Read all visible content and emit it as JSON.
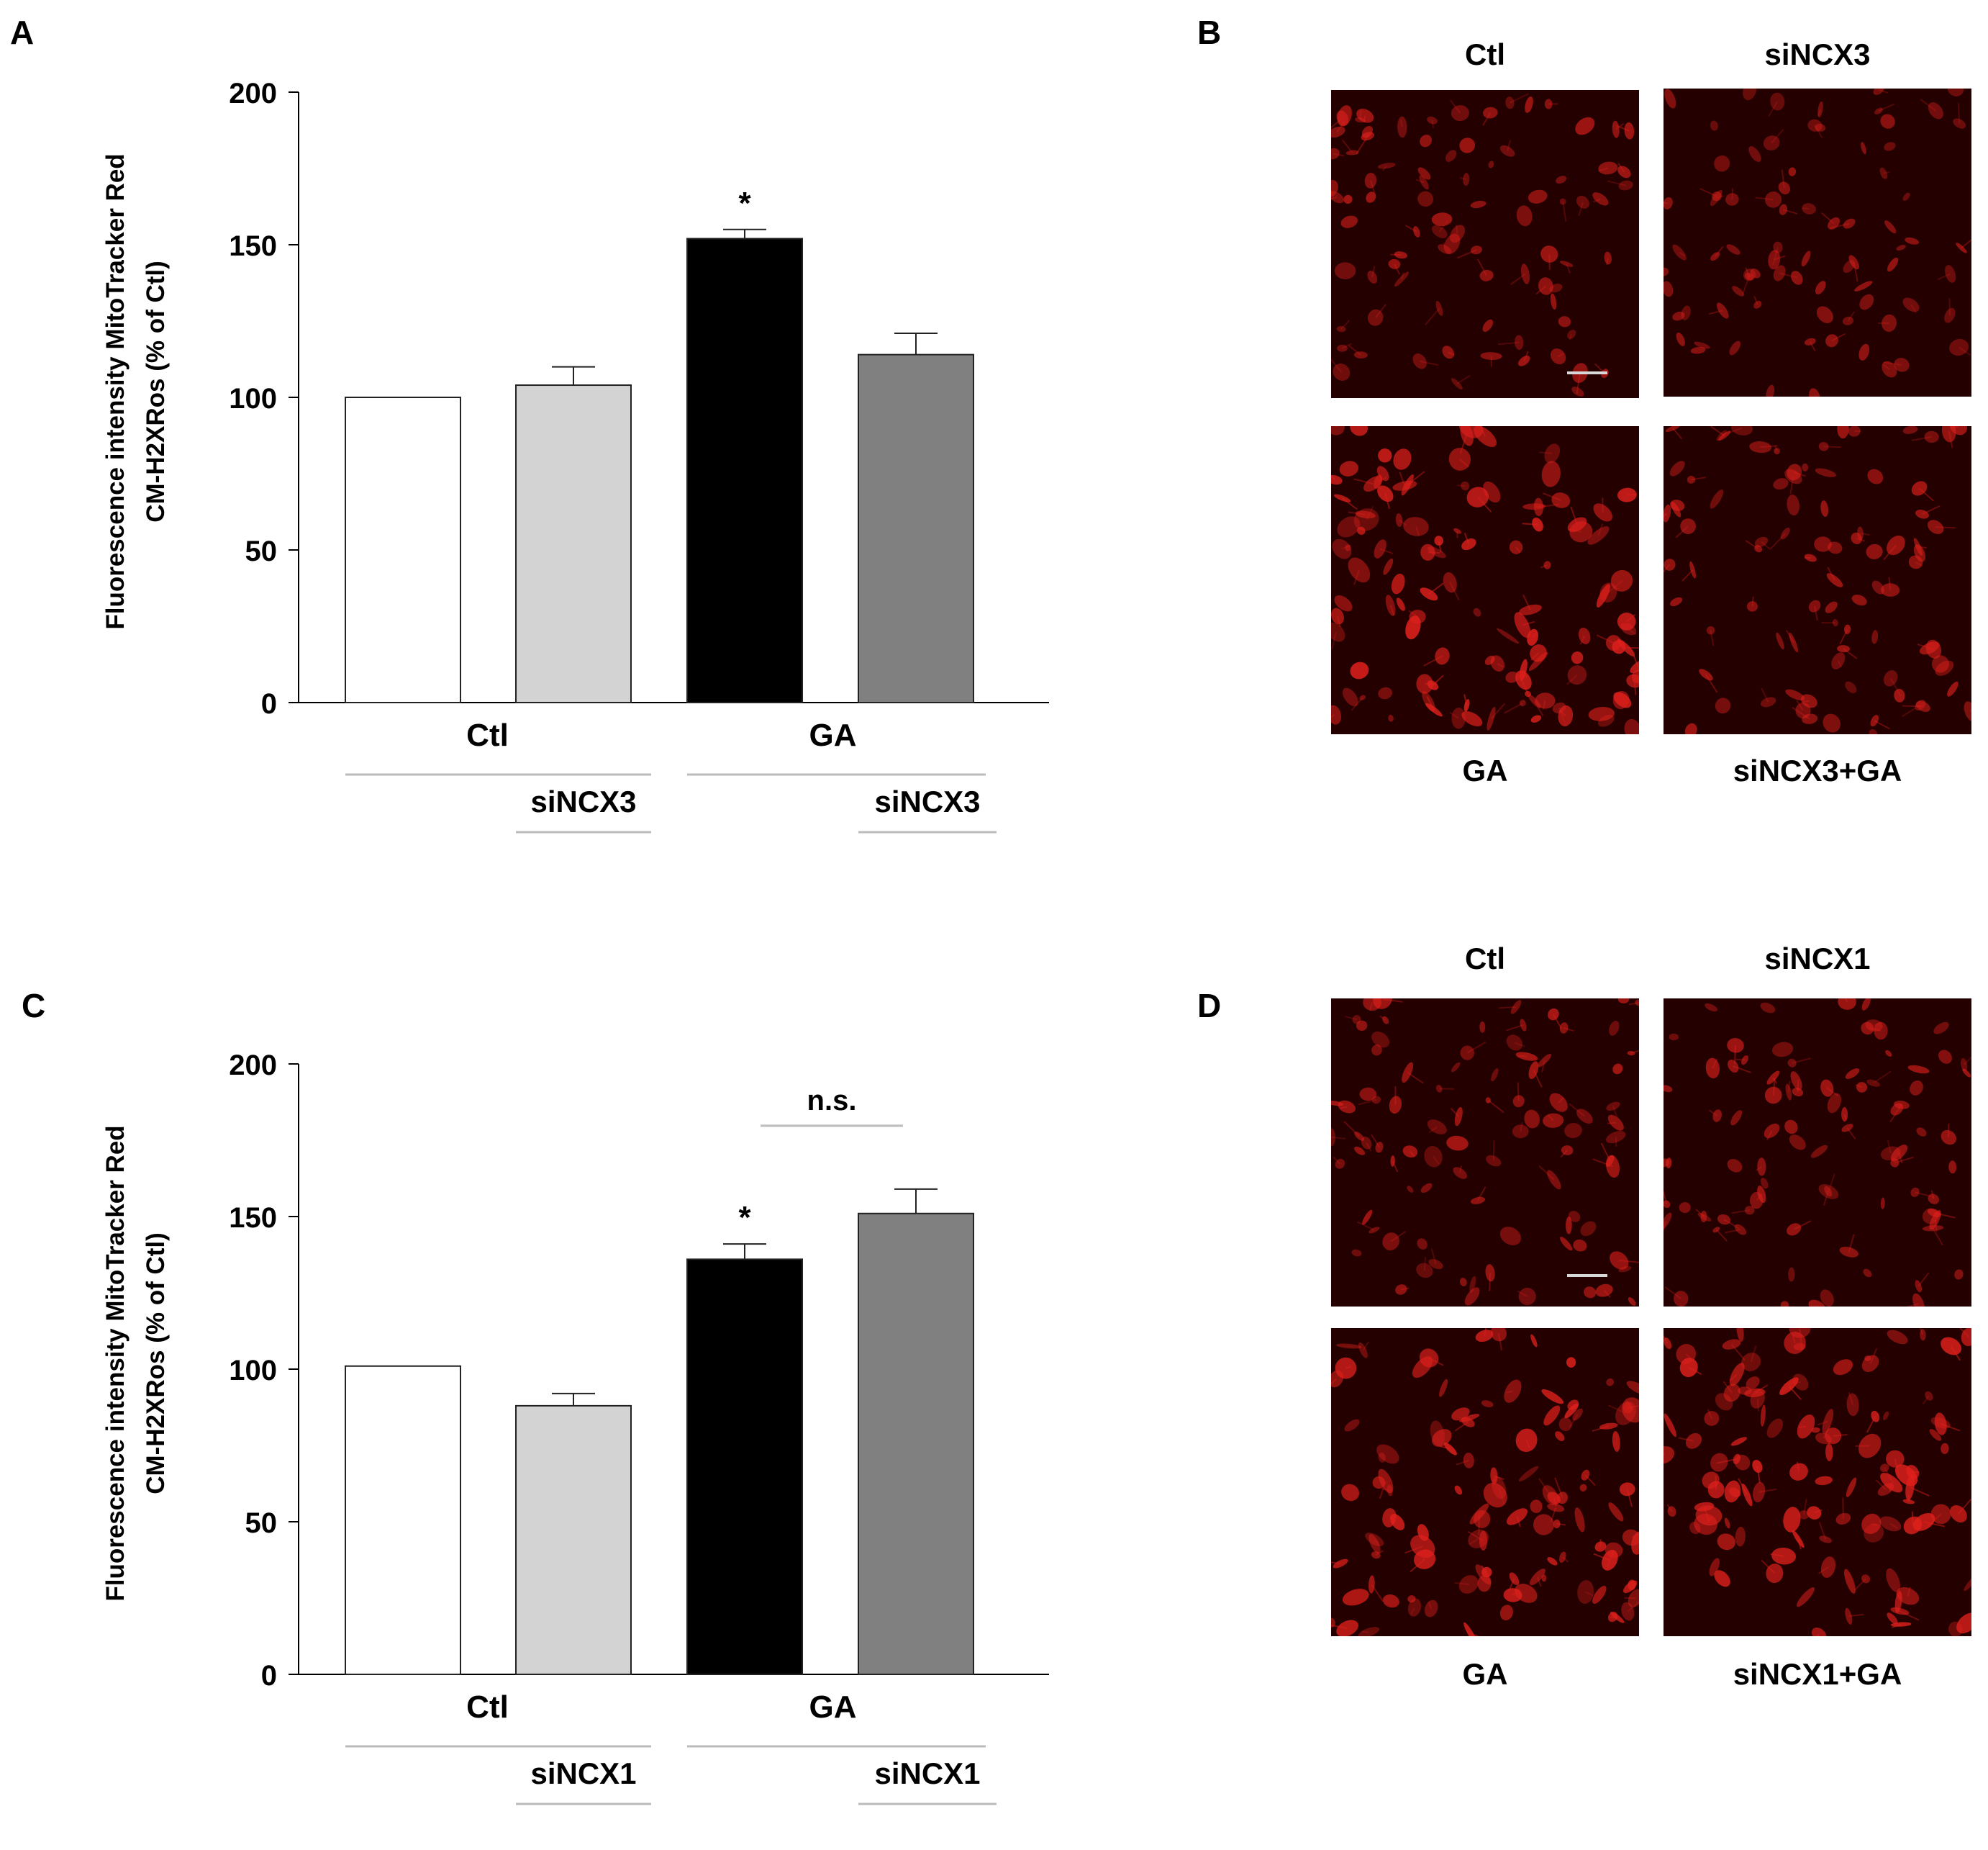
{
  "panels": {
    "A": "A",
    "B": "B",
    "C": "C",
    "D": "D"
  },
  "colors": {
    "ctl": "#ffffff",
    "si": "#d3d3d3",
    "ga": "#000000",
    "si_ga": "#808080",
    "micro_bg": "#240000",
    "cell": "#e0201c"
  },
  "chart_data": [
    {
      "type": "bar",
      "panel": "A",
      "ylabel_line1": "Fluorescence intensity MitoTracker Red",
      "ylabel_line2": "CM-H2XRos (% of Ctl)",
      "ylim": [
        0,
        200
      ],
      "yticks": [
        0,
        50,
        100,
        150,
        200
      ],
      "categories": [
        "Ctl",
        "siNCX3",
        "GA",
        "siNCX3+GA"
      ],
      "values": [
        100,
        104,
        152,
        114
      ],
      "errors": [
        0,
        6,
        3,
        7
      ],
      "significance": [
        null,
        null,
        "*",
        null
      ],
      "group_labels": [
        "Ctl",
        "GA"
      ],
      "sub_labels": [
        "siNCX3",
        "siNCX3"
      ],
      "bracket": null
    },
    {
      "type": "bar",
      "panel": "C",
      "ylabel_line1": "Fluorescence intensity MitoTracker Red",
      "ylabel_line2": "CM-H2XRos (% of Ctl)",
      "ylim": [
        0,
        200
      ],
      "yticks": [
        0,
        50,
        100,
        150,
        200
      ],
      "categories": [
        "Ctl",
        "siNCX1",
        "GA",
        "siNCX1+GA"
      ],
      "values": [
        101,
        88,
        136,
        151
      ],
      "errors": [
        0,
        4,
        5,
        8
      ],
      "significance": [
        null,
        null,
        "*",
        null
      ],
      "group_labels": [
        "Ctl",
        "GA"
      ],
      "sub_labels": [
        "siNCX1",
        "siNCX1"
      ],
      "bracket": "n.s."
    }
  ],
  "micrographs": {
    "B": {
      "top_labels": [
        "Ctl",
        "siNCX3"
      ],
      "bottom_labels": [
        "GA",
        "siNCX3+GA"
      ],
      "intensity": [
        0.55,
        0.45,
        0.95,
        0.55
      ]
    },
    "D": {
      "top_labels": [
        "Ctl",
        "siNCX1"
      ],
      "bottom_labels": [
        "GA",
        "siNCX1+GA"
      ],
      "intensity": [
        0.6,
        0.55,
        0.9,
        0.9
      ]
    }
  }
}
